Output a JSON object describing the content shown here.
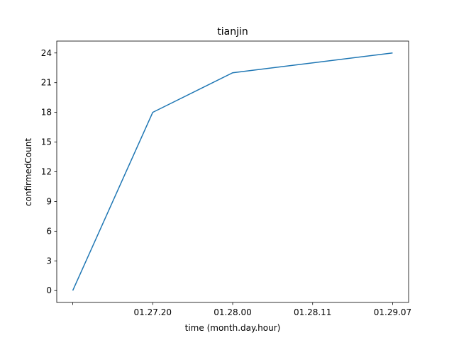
{
  "chart_data": {
    "type": "line",
    "title": "tianjin",
    "x_label": "time (month.day.hour)",
    "y_label": "confirmedCount",
    "categories": [
      null,
      "01.27.20",
      "01.28.00",
      "01.28.11",
      "01.29.07"
    ],
    "series": [
      {
        "name": "confirmedCount",
        "color": "#1f77b4",
        "values": [
          0,
          18,
          22,
          23,
          24
        ]
      }
    ],
    "ylim": [
      -1.2,
      25.2
    ],
    "yticks": [
      0,
      3,
      6,
      9,
      12,
      15,
      18,
      21,
      24
    ]
  }
}
